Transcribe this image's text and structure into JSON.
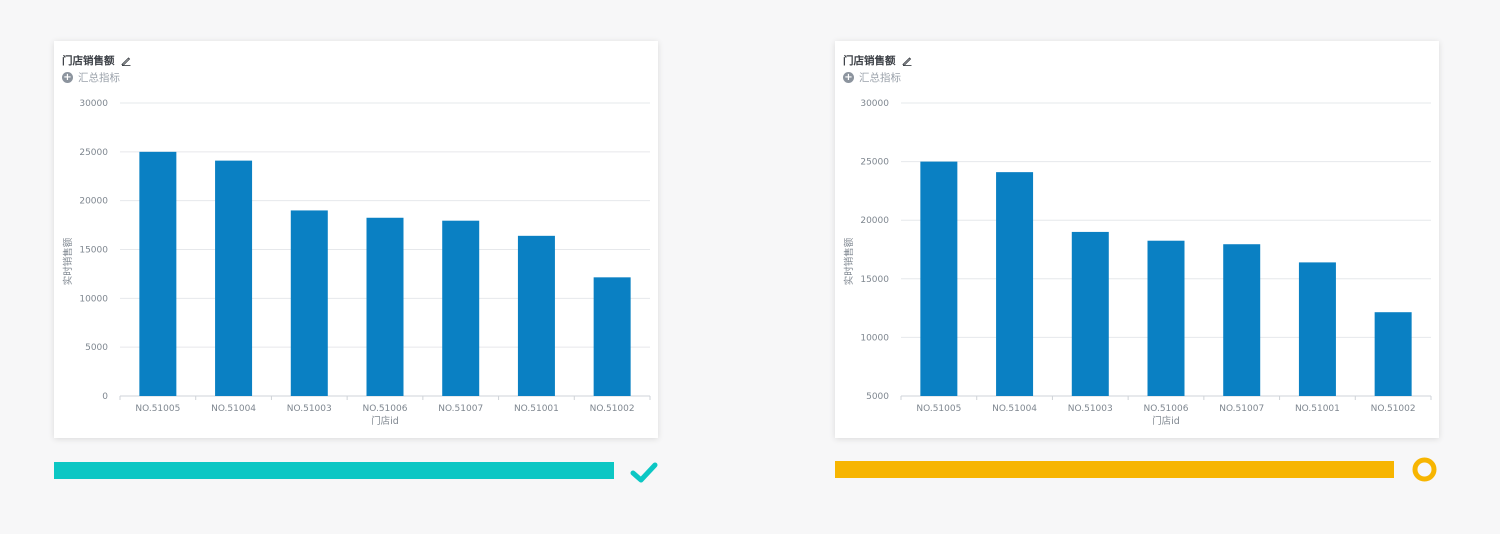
{
  "colors": {
    "bar": "#0a80c3",
    "grid": "#e6e8eb",
    "axis_text": "#7f8790",
    "success": "#0cc7c4",
    "warning": "#f7b501"
  },
  "panels": [
    {
      "title": "门店销售额",
      "edit_icon": "pencil-icon",
      "add_metric_label": "汇总指标",
      "add_icon": "plus-circle-icon"
    },
    {
      "title": "门店销售额",
      "edit_icon": "pencil-icon",
      "add_metric_label": "汇总指标",
      "add_icon": "plus-circle-icon"
    }
  ],
  "chart_data": [
    {
      "type": "bar",
      "categories": [
        "NO.51005",
        "NO.51004",
        "NO.51003",
        "NO.51006",
        "NO.51007",
        "NO.51001",
        "NO.51002"
      ],
      "values": [
        25000,
        24100,
        19000,
        18250,
        17950,
        16400,
        12150
      ],
      "xlabel": "门店id",
      "ylabel": "实时销售额",
      "ylim": [
        0,
        30000
      ],
      "yticks": [
        0,
        5000,
        10000,
        15000,
        20000,
        25000,
        30000
      ],
      "grid": true
    },
    {
      "type": "bar",
      "categories": [
        "NO.51005",
        "NO.51004",
        "NO.51003",
        "NO.51006",
        "NO.51007",
        "NO.51001",
        "NO.51002"
      ],
      "values": [
        25000,
        24100,
        19000,
        18250,
        17950,
        16400,
        12150
      ],
      "xlabel": "门店id",
      "ylabel": "实时销售额",
      "ylim": [
        5000,
        30000
      ],
      "yticks": [
        5000,
        10000,
        15000,
        20000,
        25000,
        30000
      ],
      "grid": true
    }
  ],
  "status": {
    "left": {
      "progress": 1.0,
      "icon": "check-icon"
    },
    "right": {
      "progress": 1.0,
      "icon": "ring-icon"
    }
  }
}
